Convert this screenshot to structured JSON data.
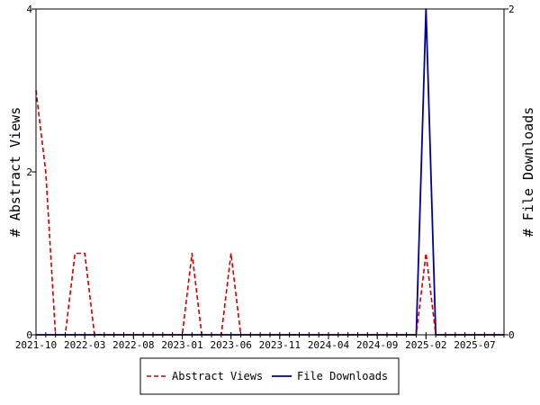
{
  "chart_data": {
    "type": "line",
    "title": "",
    "x_tick_labels": [
      "2021-10",
      "2022-03",
      "2022-08",
      "2023-01",
      "2023-06",
      "2023-11",
      "2024-04",
      "2024-09",
      "2025-02",
      "2025-07"
    ],
    "x_range": [
      "2021-10",
      "2025-10"
    ],
    "y_left": {
      "label": "# Abstract Views",
      "range": [
        0,
        4
      ],
      "ticks": [
        "0",
        "2",
        "4"
      ]
    },
    "y_right": {
      "label": "# File Downloads",
      "range": [
        0,
        2
      ],
      "ticks": [
        "0",
        "2"
      ]
    },
    "grid": false,
    "legend_position": "bottom-center",
    "series": [
      {
        "name": "Abstract Views",
        "axis": "left",
        "color": "#cc0000",
        "style": "dashed",
        "points": [
          [
            "2021-10",
            3
          ],
          [
            "2021-11",
            2
          ],
          [
            "2021-12",
            0
          ],
          [
            "2022-01",
            0
          ],
          [
            "2022-02",
            1
          ],
          [
            "2022-03",
            1
          ],
          [
            "2022-04",
            0
          ],
          [
            "2022-05",
            0
          ],
          [
            "2022-06",
            0
          ],
          [
            "2022-07",
            0
          ],
          [
            "2022-08",
            0
          ],
          [
            "2022-09",
            0
          ],
          [
            "2022-10",
            0
          ],
          [
            "2022-11",
            0
          ],
          [
            "2022-12",
            0
          ],
          [
            "2023-01",
            0
          ],
          [
            "2023-02",
            1
          ],
          [
            "2023-03",
            0
          ],
          [
            "2023-04",
            0
          ],
          [
            "2023-05",
            0
          ],
          [
            "2023-06",
            1
          ],
          [
            "2023-07",
            0
          ],
          [
            "2023-08",
            0
          ],
          [
            "2023-09",
            0
          ],
          [
            "2023-10",
            0
          ],
          [
            "2023-11",
            0
          ],
          [
            "2023-12",
            0
          ],
          [
            "2024-01",
            0
          ],
          [
            "2024-02",
            0
          ],
          [
            "2024-03",
            0
          ],
          [
            "2024-04",
            0
          ],
          [
            "2024-05",
            0
          ],
          [
            "2024-06",
            0
          ],
          [
            "2024-07",
            0
          ],
          [
            "2024-08",
            0
          ],
          [
            "2024-09",
            0
          ],
          [
            "2024-10",
            0
          ],
          [
            "2024-11",
            0
          ],
          [
            "2024-12",
            0
          ],
          [
            "2025-01",
            0
          ],
          [
            "2025-02",
            1
          ],
          [
            "2025-03",
            0
          ],
          [
            "2025-04",
            0
          ],
          [
            "2025-05",
            0
          ],
          [
            "2025-06",
            0
          ],
          [
            "2025-07",
            0
          ],
          [
            "2025-08",
            0
          ],
          [
            "2025-09",
            0
          ],
          [
            "2025-10",
            0
          ]
        ]
      },
      {
        "name": "File Downloads",
        "axis": "right",
        "color": "#000099",
        "style": "solid",
        "points": [
          [
            "2021-10",
            0
          ],
          [
            "2021-11",
            0
          ],
          [
            "2021-12",
            0
          ],
          [
            "2022-01",
            0
          ],
          [
            "2022-02",
            0
          ],
          [
            "2022-03",
            0
          ],
          [
            "2022-04",
            0
          ],
          [
            "2022-05",
            0
          ],
          [
            "2022-06",
            0
          ],
          [
            "2022-07",
            0
          ],
          [
            "2022-08",
            0
          ],
          [
            "2022-09",
            0
          ],
          [
            "2022-10",
            0
          ],
          [
            "2022-11",
            0
          ],
          [
            "2022-12",
            0
          ],
          [
            "2023-01",
            0
          ],
          [
            "2023-02",
            0
          ],
          [
            "2023-03",
            0
          ],
          [
            "2023-04",
            0
          ],
          [
            "2023-05",
            0
          ],
          [
            "2023-06",
            0
          ],
          [
            "2023-07",
            0
          ],
          [
            "2023-08",
            0
          ],
          [
            "2023-09",
            0
          ],
          [
            "2023-10",
            0
          ],
          [
            "2023-11",
            0
          ],
          [
            "2023-12",
            0
          ],
          [
            "2024-01",
            0
          ],
          [
            "2024-02",
            0
          ],
          [
            "2024-03",
            0
          ],
          [
            "2024-04",
            0
          ],
          [
            "2024-05",
            0
          ],
          [
            "2024-06",
            0
          ],
          [
            "2024-07",
            0
          ],
          [
            "2024-08",
            0
          ],
          [
            "2024-09",
            0
          ],
          [
            "2024-10",
            0
          ],
          [
            "2024-11",
            0
          ],
          [
            "2024-12",
            0
          ],
          [
            "2025-01",
            0
          ],
          [
            "2025-02",
            2
          ],
          [
            "2025-03",
            0
          ],
          [
            "2025-04",
            0
          ],
          [
            "2025-05",
            0
          ],
          [
            "2025-06",
            0
          ],
          [
            "2025-07",
            0
          ],
          [
            "2025-08",
            0
          ],
          [
            "2025-09",
            0
          ],
          [
            "2025-10",
            0
          ]
        ]
      }
    ]
  }
}
